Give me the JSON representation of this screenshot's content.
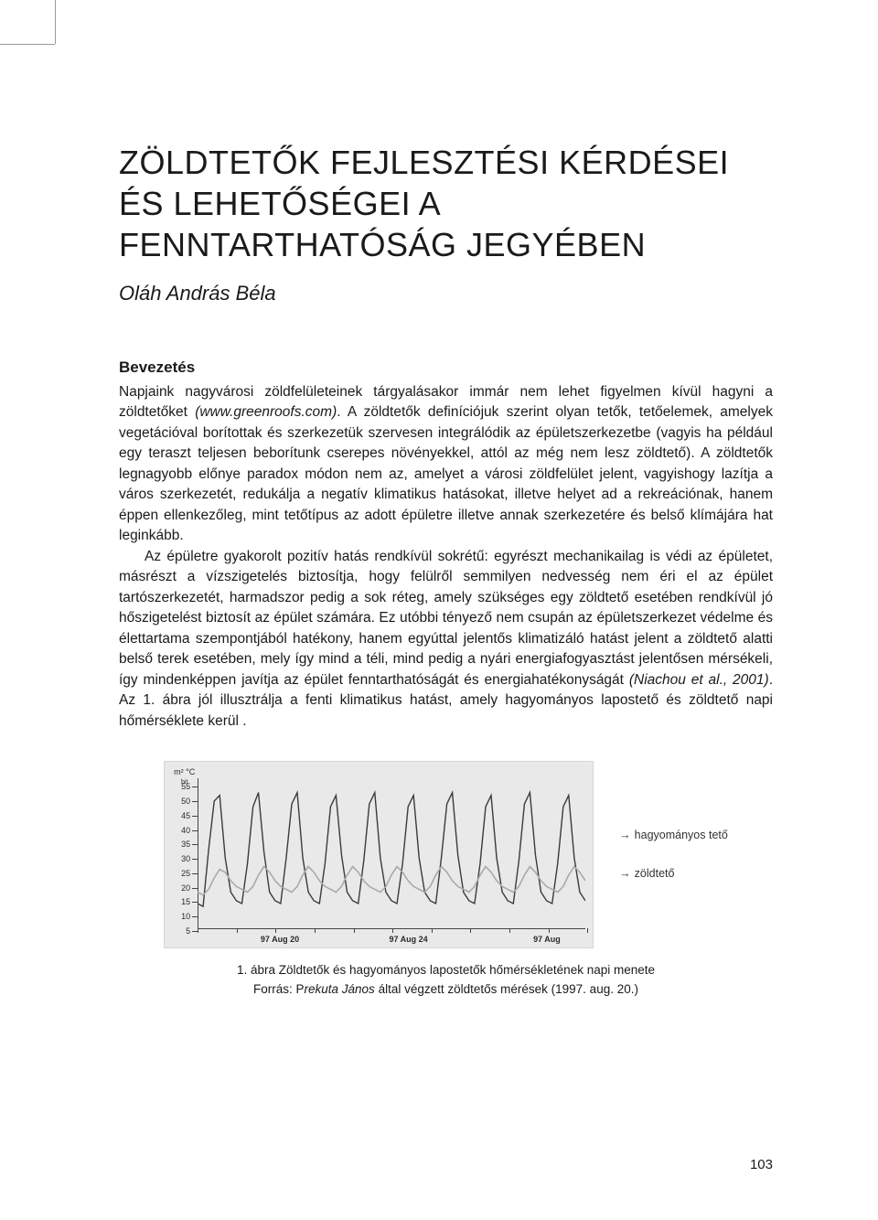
{
  "title": "ZÖLDTETŐK FEJLESZTÉSI KÉRDÉSEI ÉS LEHETŐSÉGEI A FENNTARTHATÓSÁG JEGYÉBEN",
  "author": "Oláh András Béla",
  "section_heading": "Bevezetés",
  "para1_a": "Napjaink nagyvárosi zöldfelületeinek tárgyalásakor immár nem lehet figyelmen kívül hagyni a zöldtetőket ",
  "para1_em1": "(www.greenroofs.com)",
  "para1_b": ". A zöldtetők definíciójuk szerint olyan tetők, tetőelemek, amelyek vegetációval borítottak és szerkezetük szervesen integrálódik az épületszerkezetbe (vagyis ha például egy teraszt teljesen beborítunk cserepes növényekkel, attól az még nem lesz zöldtető). A zöldtetők legnagyobb előnye paradox módon nem az, amelyet a városi zöldfelület jelent, vagyishogy lazítja a város szerkezetét, redukálja a negatív klimatikus hatásokat, illetve helyet ad a rekreációnak, hanem éppen ellenkezőleg, mint tetőtípus az adott épületre illetve annak szerkezetére és belső klímájára hat leginkább.",
  "para2_a": "Az épületre gyakorolt pozitív hatás rendkívül sokrétű: egyrészt mechanikailag is védi az épületet, másrészt a vízszigetelés biztosítja, hogy felülről semmilyen nedvesség nem éri el az épület tartószerkezetét, harmadszor pedig a sok réteg, amely szükséges egy zöldtető esetében rendkívül jó hőszigetelést biztosít az épület számára. Ez utóbbi tényező nem csupán az épületszerkezet védelme és élettartama szempontjából hatékony, hanem egyúttal jelentős klimatizáló hatást jelent a zöldtető alatti belső terek esetében, mely így mind a téli, mind pedig a nyári energiafogyasztást jelentősen mérsékeli, így mindenképpen javítja az épület fenntarthatóságát és energiahatékonyságát ",
  "para2_em1": "(Niachou et al., 2001)",
  "para2_b": ". Az 1. ábra jól illusztrálja a fenti klimatikus hatást, amely hagyományos lapostető és zöldtető napi hőmérséklete kerül .",
  "chart": {
    "type": "line",
    "y_axis_label": "m² °C\nbit",
    "y_ticks": [
      5,
      10,
      15,
      20,
      25,
      30,
      35,
      40,
      45,
      50,
      55
    ],
    "ylim": [
      5,
      58
    ],
    "x_ticks": [
      {
        "label": "97 Aug 20",
        "pos": 0.22
      },
      {
        "label": "97 Aug 24",
        "pos": 0.55
      },
      {
        "label": "97 Aug",
        "pos": 0.92
      }
    ],
    "background_color": "#e9e9e9",
    "grid_color": "#444444",
    "series": [
      {
        "name": "hagyományos tető",
        "color": "#3a3a3a",
        "width": 1.4,
        "values": [
          14,
          13,
          33,
          50,
          52,
          30,
          18,
          15,
          14,
          28,
          48,
          53,
          32,
          18,
          15,
          14,
          30,
          49,
          53,
          30,
          18,
          15,
          14,
          28,
          48,
          52,
          31,
          18,
          15,
          14,
          29,
          49,
          53,
          30,
          18,
          15,
          14,
          28,
          48,
          52,
          30,
          18,
          15,
          14,
          30,
          49,
          53,
          31,
          18,
          15,
          14,
          28,
          48,
          52,
          30,
          18,
          15,
          14,
          29,
          49,
          53,
          31,
          18,
          15,
          14,
          28,
          48,
          52,
          30,
          18,
          15
        ]
      },
      {
        "name": "zöldtető",
        "color": "#a9a9a9",
        "width": 1.6,
        "values": [
          18,
          17,
          19,
          23,
          26,
          25,
          22,
          20,
          19,
          18,
          20,
          24,
          27,
          25,
          22,
          20,
          19,
          18,
          20,
          24,
          27,
          25,
          22,
          20,
          19,
          18,
          20,
          24,
          27,
          25,
          22,
          20,
          19,
          18,
          20,
          24,
          27,
          25,
          22,
          20,
          19,
          18,
          20,
          24,
          27,
          25,
          22,
          20,
          19,
          18,
          20,
          24,
          27,
          25,
          22,
          20,
          19,
          18,
          20,
          24,
          27,
          25,
          22,
          20,
          19,
          18,
          20,
          24,
          27,
          25,
          22
        ]
      }
    ]
  },
  "legend": {
    "item1": "hagyományos tető",
    "item2": "zöldtető",
    "arrow": "→"
  },
  "caption_line1": "1. ábra  Zöldtetők és hagyományos lapostetők hőmérsékletének napi menete",
  "caption_line2_a": "Forrás: P",
  "caption_line2_em": "rekuta János",
  "caption_line2_b": " által végzett zöldtetős mérések (1997. aug. 20.)",
  "page_number": "103"
}
